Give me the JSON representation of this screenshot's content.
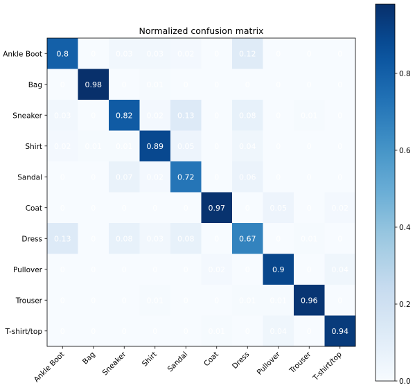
{
  "chart_data": {
    "type": "heatmap",
    "title": "Normalized confusion matrix",
    "xlabel": "",
    "ylabel": "",
    "row_labels": [
      "Ankle Boot",
      "Bag",
      "Sneaker",
      "Shirt",
      "Sandal",
      "Coat",
      "Dress",
      "Pullover",
      "Trouser",
      "T-shirt/top"
    ],
    "col_labels": [
      "Ankle Boot",
      "Bag",
      "Sneaker",
      "Shirt",
      "Sandal",
      "Coat",
      "Dress",
      "Pullover",
      "Trouser",
      "T-shirt/top"
    ],
    "values": [
      [
        0.8,
        0.0,
        0.03,
        0.03,
        0.02,
        0.0,
        0.12,
        0.0,
        0.0,
        0.0
      ],
      [
        0.0,
        0.98,
        0.0,
        0.01,
        0.0,
        0.0,
        0.0,
        0.0,
        0.0,
        0.0
      ],
      [
        0.03,
        0.0,
        0.82,
        0.02,
        0.13,
        0.0,
        0.08,
        0.0,
        0.01,
        0.0
      ],
      [
        0.02,
        0.01,
        0.01,
        0.89,
        0.05,
        0.0,
        0.04,
        0.0,
        0.0,
        0.0
      ],
      [
        0.0,
        0.0,
        0.07,
        0.02,
        0.72,
        0.0,
        0.06,
        0.0,
        0.0,
        0.0
      ],
      [
        0.0,
        0.0,
        0.0,
        0.0,
        0.0,
        0.97,
        0.0,
        0.05,
        0.0,
        0.02
      ],
      [
        0.13,
        0.0,
        0.08,
        0.03,
        0.08,
        0.0,
        0.67,
        0.0,
        0.01,
        0.0
      ],
      [
        0.0,
        0.0,
        0.0,
        0.0,
        0.0,
        0.02,
        0.0,
        0.9,
        0.0,
        0.04
      ],
      [
        0.0,
        0.0,
        0.0,
        0.01,
        0.0,
        0.0,
        0.01,
        0.01,
        0.96,
        0.0
      ],
      [
        0.0,
        0.0,
        0.0,
        0.0,
        0.0,
        0.01,
        0.0,
        0.04,
        0.0,
        0.94
      ]
    ],
    "colorbar": {
      "colormap": "Blues",
      "min": 0.0,
      "max": 0.98,
      "ticks": [
        0.0,
        0.2,
        0.4,
        0.6,
        0.8
      ],
      "tick_labels": [
        "0.0",
        "0.2",
        "0.4",
        "0.6",
        "0.8"
      ]
    },
    "colors": {
      "low": "#f7fbff",
      "high": "#08306b",
      "text_light": "#ffffff",
      "text_dark": "#000000"
    },
    "grid": false
  }
}
